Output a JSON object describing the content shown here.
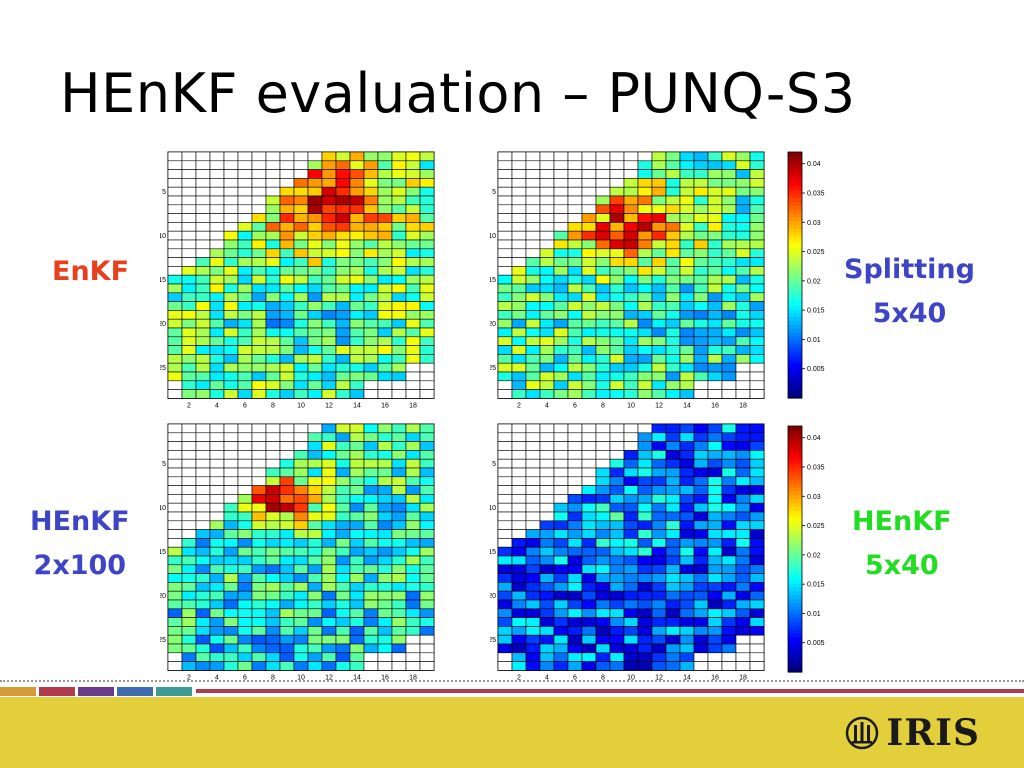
{
  "slide": {
    "title": "HEnKF evaluation – PUNQ-S3",
    "labels": {
      "enkf": {
        "text": "EnKF",
        "color": "#e8401c"
      },
      "splitting": {
        "line1": "Splitting",
        "line2": "5x40",
        "color": "#3d45c6"
      },
      "henkf_2x100": {
        "line1": "HEnKF",
        "line2": "2x100",
        "color": "#3d45c6"
      },
      "henkf_5x40": {
        "line1": "HEnKF",
        "line2": "5x40",
        "color": "#22dd22"
      }
    },
    "colorbar": {
      "ticks": [
        "0.04",
        "0.035",
        "0.03",
        "0.025",
        "0.02",
        "0.015",
        "0.01",
        "0.005"
      ],
      "range": [
        0.0,
        0.042
      ]
    },
    "axes": {
      "x_ticks": [
        "2",
        "4",
        "6",
        "8",
        "10",
        "12",
        "14",
        "16",
        "18"
      ],
      "y_ticks": [
        "5",
        "10",
        "15",
        "20",
        "25"
      ]
    },
    "colors": {
      "footer": "#e3cf3c",
      "stripe_accent": "#b03a4e",
      "stripes": [
        "#d79a3a",
        "#b03a4e",
        "#6a3b8c",
        "#3f6cb0",
        "#3e9c95"
      ]
    },
    "logo": {
      "text": "IRIS",
      "icon": "iris-logo-icon"
    }
  }
}
